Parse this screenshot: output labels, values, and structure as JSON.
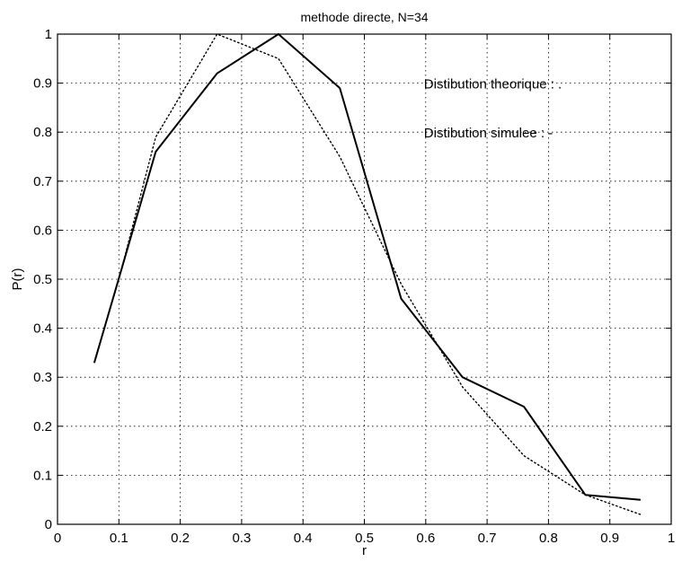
{
  "chart_data": {
    "type": "line",
    "title": "methode directe, N=34",
    "xlabel": "r",
    "ylabel": "P(r)",
    "xlim": [
      0,
      1
    ],
    "ylim": [
      0,
      1
    ],
    "grid": true,
    "x_ticks": [
      "0",
      "0.1",
      "0.2",
      "0.3",
      "0.4",
      "0.5",
      "0.6",
      "0.7",
      "0.8",
      "0.9",
      "1"
    ],
    "y_ticks": [
      "0",
      "0.1",
      "0.2",
      "0.3",
      "0.4",
      "0.5",
      "0.6",
      "0.7",
      "0.8",
      "0.9",
      "1"
    ],
    "annotations": [
      {
        "text": "Distibution theorique : .",
        "x": 0.6,
        "y": 0.9
      },
      {
        "text": "Distibution simulee : -",
        "x": 0.6,
        "y": 0.8
      }
    ],
    "series": [
      {
        "style": "dotted",
        "x": [
          0.06,
          0.1,
          0.16,
          0.26,
          0.36,
          0.46,
          0.56,
          0.66,
          0.76,
          0.86,
          0.95
        ],
        "y": [
          0.33,
          0.5,
          0.79,
          1.0,
          0.95,
          0.75,
          0.49,
          0.28,
          0.14,
          0.06,
          0.02
        ]
      },
      {
        "style": "solid",
        "x": [
          0.06,
          0.16,
          0.26,
          0.36,
          0.46,
          0.56,
          0.66,
          0.76,
          0.86,
          0.95
        ],
        "y": [
          0.33,
          0.76,
          0.92,
          1.0,
          0.89,
          0.46,
          0.3,
          0.24,
          0.06,
          0.05
        ]
      }
    ]
  }
}
